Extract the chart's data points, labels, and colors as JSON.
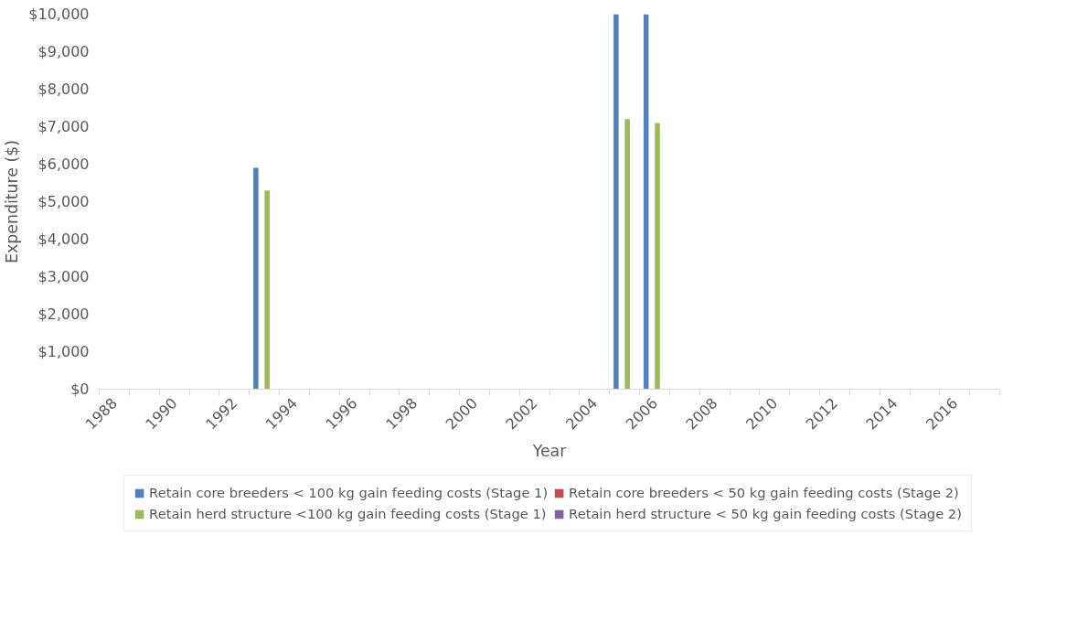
{
  "chart_data": {
    "type": "bar",
    "xlabel": "Year",
    "ylabel": "Expenditure ($)",
    "categories": [
      "1988",
      null,
      "1990",
      null,
      "1992",
      null,
      "1994",
      null,
      "1996",
      null,
      "1998",
      null,
      "2000",
      null,
      "2002",
      null,
      "2004",
      null,
      "2006",
      null,
      "2008",
      null,
      "2010",
      null,
      "2012",
      null,
      "2014",
      null,
      "2016",
      null
    ],
    "series": [
      {
        "name": "Retain core breeders < 100 kg gain feeding costs (Stage 1)",
        "color": "#4f81bd",
        "values": [
          0,
          0,
          0,
          0,
          0,
          5900,
          0,
          0,
          0,
          0,
          0,
          0,
          0,
          0,
          0,
          0,
          0,
          10000,
          10000,
          0,
          0,
          0,
          0,
          0,
          0,
          0,
          0,
          0,
          0,
          0
        ]
      },
      {
        "name": "Retain core breeders < 50 kg gain feeding costs (Stage 2)",
        "color": "#c0504d",
        "values": [
          0,
          0,
          0,
          0,
          0,
          0,
          0,
          0,
          0,
          0,
          0,
          0,
          0,
          0,
          0,
          0,
          0,
          0,
          0,
          0,
          0,
          0,
          0,
          0,
          0,
          0,
          0,
          0,
          0,
          0
        ]
      },
      {
        "name": "Retain herd structure <100 kg gain feeding costs (Stage 1)",
        "color": "#9bbb59",
        "values": [
          0,
          0,
          0,
          0,
          0,
          5300,
          0,
          0,
          0,
          0,
          0,
          0,
          0,
          0,
          0,
          0,
          0,
          7200,
          7100,
          0,
          0,
          0,
          0,
          0,
          0,
          0,
          0,
          0,
          0,
          0
        ]
      },
      {
        "name": "Retain herd structure < 50 kg gain feeding costs (Stage 2)",
        "color": "#8064a2",
        "values": [
          0,
          0,
          0,
          0,
          0,
          0,
          0,
          0,
          0,
          0,
          0,
          0,
          0,
          0,
          0,
          0,
          0,
          0,
          0,
          0,
          0,
          0,
          0,
          0,
          0,
          0,
          0,
          0,
          0,
          0
        ]
      }
    ],
    "ylim": [
      0,
      10000
    ],
    "yticks": [
      {
        "value": 0,
        "label": "$0"
      },
      {
        "value": 1000,
        "label": "$1,000"
      },
      {
        "value": 2000,
        "label": "$2,000"
      },
      {
        "value": 3000,
        "label": "$3,000"
      },
      {
        "value": 4000,
        "label": "$4,000"
      },
      {
        "value": 5000,
        "label": "$5,000"
      },
      {
        "value": 6000,
        "label": "$6,000"
      },
      {
        "value": 7000,
        "label": "$7,000"
      },
      {
        "value": 8000,
        "label": "$8,000"
      },
      {
        "value": 9000,
        "label": "$9,000"
      },
      {
        "value": 10000,
        "label": "$10,000"
      }
    ],
    "grid": false,
    "legend": "bottom"
  }
}
